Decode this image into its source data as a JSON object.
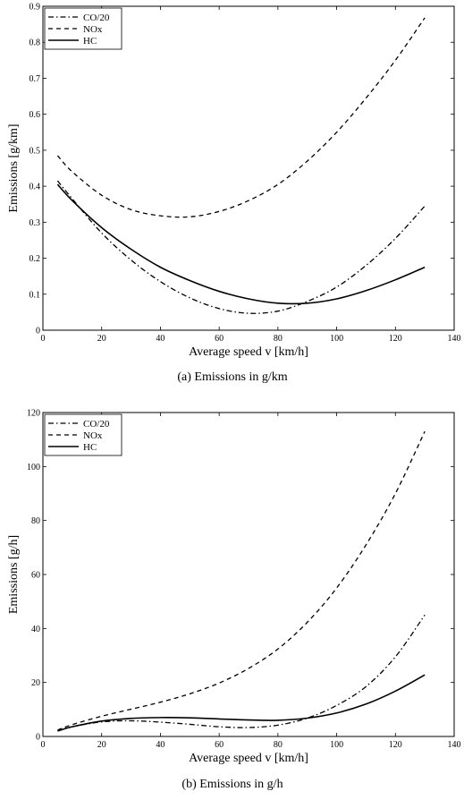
{
  "chart_data": [
    {
      "type": "line",
      "caption": "(a) Emissions in g/km",
      "xlabel": "Average speed v [km/h]",
      "ylabel": "Emissions [g/km]",
      "xlim": [
        0,
        140
      ],
      "ylim": [
        0,
        0.9
      ],
      "xticks": [
        "0",
        "20",
        "40",
        "60",
        "80",
        "100",
        "120",
        "140"
      ],
      "yticks": [
        "0",
        "0.1",
        "0.2",
        "0.3",
        "0.4",
        "0.5",
        "0.6",
        "0.7",
        "0.8",
        "0.9"
      ],
      "grid": false,
      "legend_position": "top-left",
      "series": [
        {
          "name": "CO/20",
          "style": "dashdot",
          "x": [
            5,
            10,
            20,
            30,
            40,
            50,
            60,
            70,
            80,
            90,
            100,
            110,
            120,
            130
          ],
          "y": [
            0.415,
            0.365,
            0.27,
            0.195,
            0.135,
            0.09,
            0.06,
            0.047,
            0.053,
            0.08,
            0.12,
            0.18,
            0.255,
            0.345
          ]
        },
        {
          "name": "NOx",
          "style": "dashed",
          "x": [
            5,
            10,
            20,
            30,
            40,
            50,
            60,
            70,
            80,
            90,
            100,
            110,
            120,
            130
          ],
          "y": [
            0.485,
            0.44,
            0.375,
            0.335,
            0.318,
            0.315,
            0.33,
            0.36,
            0.405,
            0.47,
            0.55,
            0.645,
            0.75,
            0.868
          ]
        },
        {
          "name": "HC",
          "style": "solid",
          "x": [
            5,
            10,
            20,
            30,
            40,
            50,
            60,
            70,
            80,
            90,
            100,
            110,
            120,
            130
          ],
          "y": [
            0.405,
            0.36,
            0.285,
            0.225,
            0.175,
            0.138,
            0.108,
            0.087,
            0.075,
            0.075,
            0.087,
            0.11,
            0.14,
            0.175
          ]
        }
      ]
    },
    {
      "type": "line",
      "caption": "(b) Emissions in g/h",
      "xlabel": "Average speed v [km/h]",
      "ylabel": "Emissions [g/h]",
      "xlim": [
        0,
        140
      ],
      "ylim": [
        0,
        120
      ],
      "xticks": [
        "0",
        "20",
        "40",
        "60",
        "80",
        "100",
        "120",
        "140"
      ],
      "yticks": [
        "0",
        "20",
        "40",
        "60",
        "80",
        "100",
        "120"
      ],
      "grid": false,
      "legend_position": "top-left",
      "series": [
        {
          "name": "CO/20",
          "style": "dashdot",
          "x": [
            5,
            10,
            20,
            30,
            40,
            50,
            60,
            70,
            80,
            90,
            100,
            110,
            120,
            130
          ],
          "y": [
            2.1,
            3.6,
            5.4,
            5.8,
            5.3,
            4.5,
            3.6,
            3.3,
            4.2,
            6.8,
            11.5,
            18.5,
            29.5,
            45
          ]
        },
        {
          "name": "NOx",
          "style": "dashed",
          "x": [
            5,
            10,
            20,
            30,
            40,
            50,
            60,
            70,
            80,
            90,
            100,
            110,
            120,
            130
          ],
          "y": [
            2.4,
            4.4,
            7.5,
            10.1,
            12.7,
            15.8,
            19.8,
            25.2,
            32.4,
            42.3,
            55,
            71,
            90,
            113
          ]
        },
        {
          "name": "HC",
          "style": "solid",
          "x": [
            5,
            10,
            20,
            30,
            40,
            50,
            60,
            70,
            80,
            90,
            100,
            110,
            120,
            130
          ],
          "y": [
            2,
            3.6,
            5.7,
            6.7,
            7,
            6.9,
            6.5,
            6.1,
            6.0,
            6.8,
            8.7,
            12,
            16.8,
            22.8
          ]
        }
      ]
    }
  ]
}
